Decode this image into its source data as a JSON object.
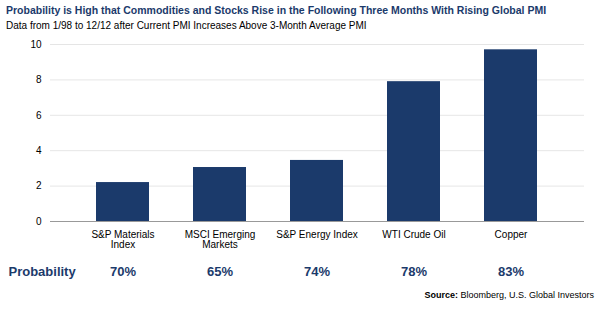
{
  "chart_data": {
    "type": "bar",
    "title": "Probability is High that Commodities and Stocks Rise in the Following Three Months With Rising Global PMI",
    "subtitle": "Data from 1/98 to 12/12 after Current PMI Increases Above 3-Month Average PMI",
    "categories": [
      "S&P Materials\nIndex",
      "MSCI Emerging\nMarkets",
      "S&P Energy Index",
      "WTI Crude Oil",
      "Copper"
    ],
    "values": [
      2.2,
      3.05,
      3.45,
      7.9,
      9.7
    ],
    "color": "#1B3A6B",
    "ylim": [
      0,
      10
    ],
    "yticks": [
      0,
      2,
      4,
      6,
      8,
      10
    ],
    "grid": true,
    "probability_label": "Probability",
    "probabilities": [
      70,
      65,
      74,
      78,
      83
    ],
    "probability_labels": [
      "70%",
      "65%",
      "74%",
      "78%",
      "83%"
    ],
    "source_label": "Source:",
    "source": " Bloomberg, U.S. Global Investors"
  }
}
